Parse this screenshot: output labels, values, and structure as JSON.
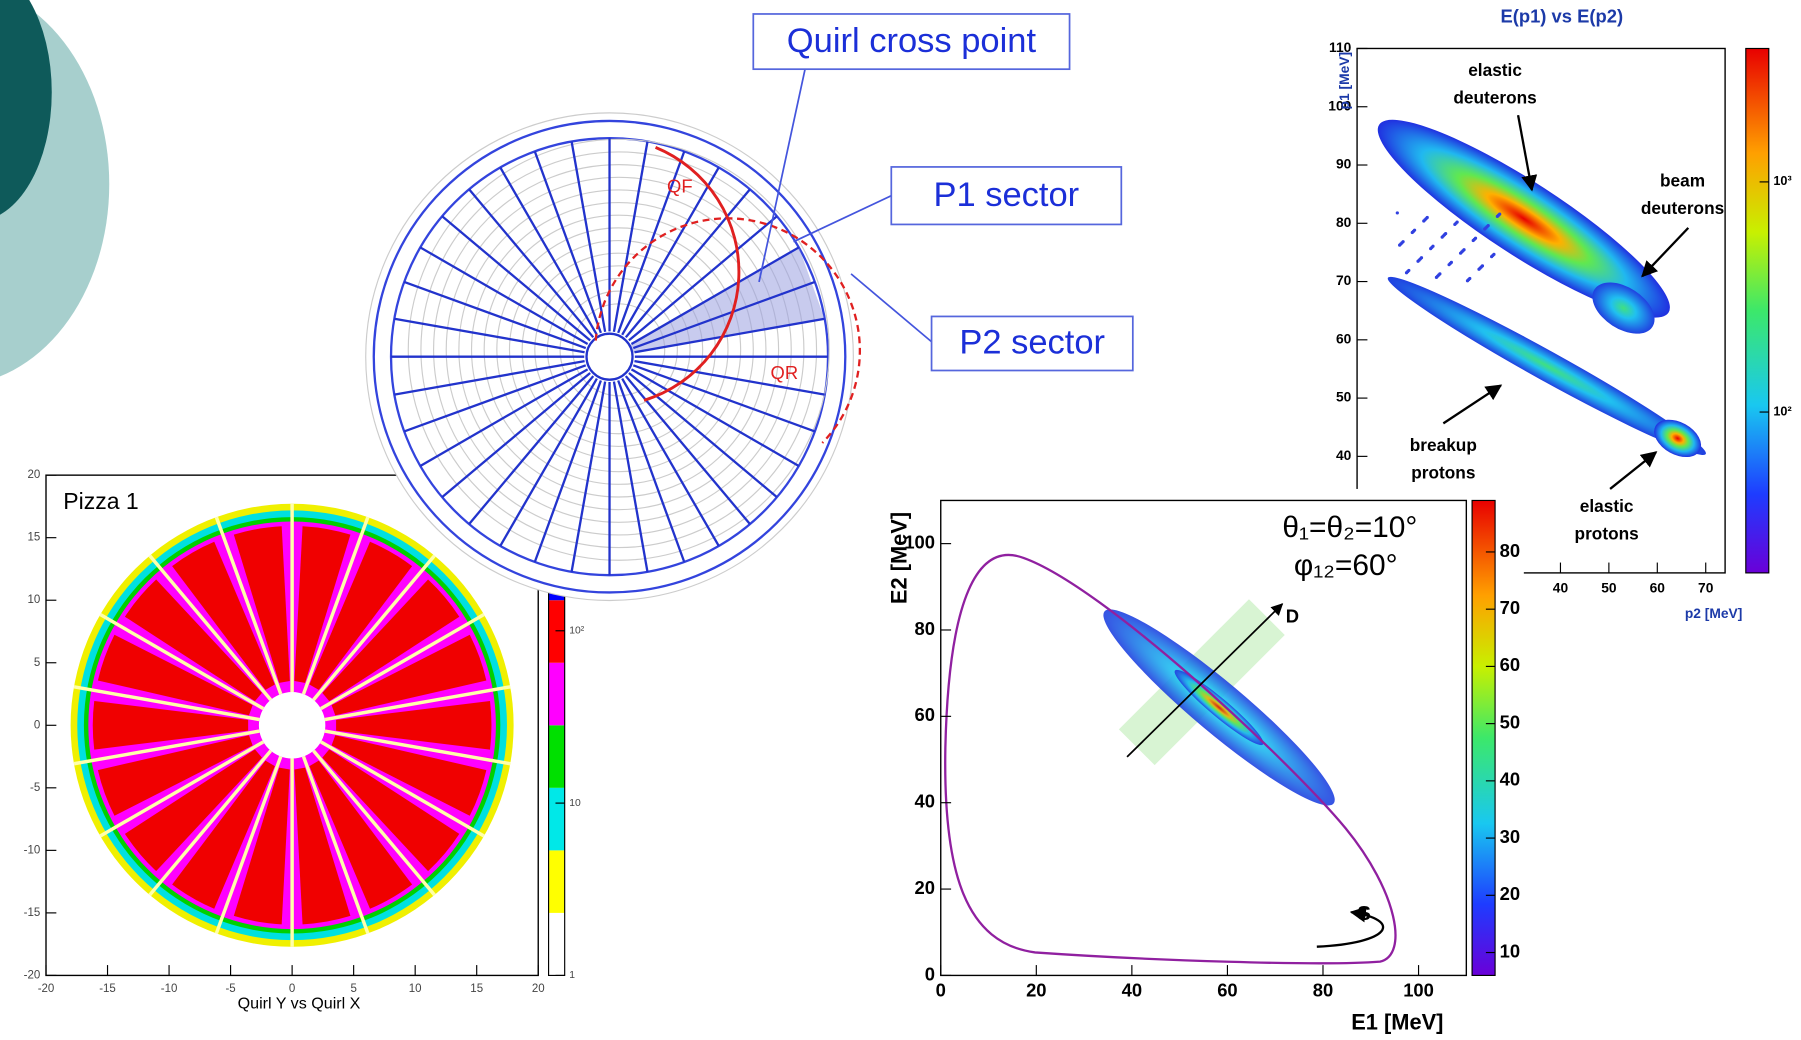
{
  "detector": {
    "callouts": [
      "Quirl cross point",
      "P1 sector",
      "P2 sector"
    ],
    "arc_labels": [
      "QF",
      "QR"
    ]
  },
  "plots": [
    {
      "type": "heatmap",
      "title": "E(p1) vs E(p2)",
      "xlabel": "p2 [MeV]",
      "ylabel": "p1 [MeV]",
      "xlim": [
        -2,
        74
      ],
      "ylim": [
        20,
        110
      ],
      "xticks": [
        40,
        50,
        60,
        70
      ],
      "yticks": [
        40,
        50,
        60,
        70,
        80,
        90,
        100,
        110
      ],
      "colorbar_log": true,
      "clim": [
        20,
        3800
      ],
      "cticks": [
        {
          "value": 100,
          "label": "10²"
        },
        {
          "value": 1000,
          "label": "10³"
        }
      ],
      "annotations": [
        [
          "elastic",
          "deuterons"
        ],
        [
          "beam",
          "deuterons"
        ],
        [
          "breakup",
          "protons"
        ],
        [
          "elastic",
          "protons"
        ]
      ]
    },
    {
      "type": "heatmap",
      "title": "Pizza 1",
      "xlabel": "Quirl Y vs Quirl X",
      "xlim": [
        -20,
        20
      ],
      "ylim": [
        -20,
        20
      ],
      "xticks": [
        -20,
        -15,
        -10,
        -5,
        0,
        5,
        10,
        15,
        20
      ],
      "yticks": [
        -20,
        -15,
        -10,
        -5,
        0,
        5,
        10,
        15,
        20
      ],
      "colorbar_log": true,
      "clim": [
        1,
        800
      ],
      "cticks": [
        1,
        10,
        {
          "value": 100,
          "label": "10²"
        }
      ]
    },
    {
      "type": "heatmap",
      "xlabel": "E1 [MeV]",
      "ylabel": "E2 [MeV]",
      "xlim": [
        0,
        110
      ],
      "ylim": [
        0,
        110
      ],
      "xticks": [
        0,
        20,
        40,
        60,
        80,
        100
      ],
      "yticks": [
        0,
        20,
        40,
        60,
        80,
        100
      ],
      "colorbar_log": false,
      "clim": [
        6,
        89
      ],
      "cticks": [
        10,
        20,
        30,
        40,
        50,
        60,
        70,
        80
      ],
      "annotations": [
        [
          "θ₁=θ₂=10°"
        ],
        [
          "φ₁₂=60°"
        ],
        [
          "D"
        ],
        [
          "S"
        ]
      ]
    }
  ]
}
